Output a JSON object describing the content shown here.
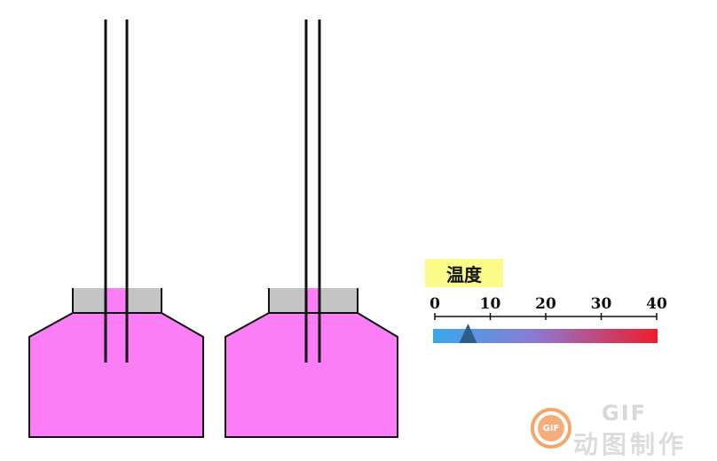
{
  "temperature_label": "温度",
  "scale": {
    "ticks": [
      "0",
      "10",
      "20",
      "30",
      "40"
    ],
    "min": 0,
    "max": 40,
    "indicator_value": 6,
    "gradient_colors": [
      "#38a8ea",
      "#f01c2c"
    ]
  },
  "colors": {
    "liquid": "#fb7ef6",
    "cap": "#c4c4c4",
    "tube": "#111111",
    "label_bg": "#fbfb8a",
    "indicator": "#2e5d8a"
  },
  "watermark": {
    "badge": "GIF",
    "title": "GIF",
    "subtitle": "动图制作"
  }
}
